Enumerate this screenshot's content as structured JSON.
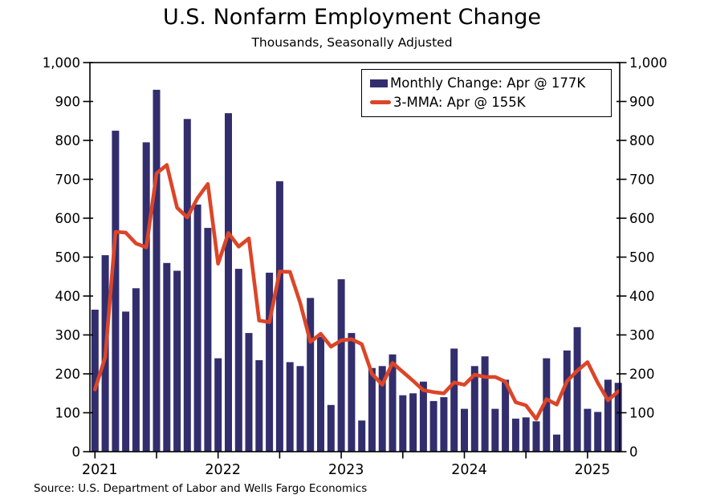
{
  "chart": {
    "title": "U.S. Nonfarm Employment Change",
    "subtitle": "Thousands, Seasonally Adjusted",
    "source": "Source: U.S. Department of Labor and Wells Fargo Economics",
    "legend": [
      {
        "label": "Monthly Change: Apr @ 177K",
        "marker": "bar-swatch",
        "color": "#322e6d"
      },
      {
        "label": "3-MMA: Apr @ 155K",
        "marker": "line-swatch",
        "color": "#dc4528"
      }
    ]
  },
  "chart_data": {
    "type": "bar",
    "title": "U.S. Nonfarm Employment Change",
    "subtitle": "Thousands, Seasonally Adjusted",
    "xlabel": "",
    "ylabel": "Thousands, Seasonally Adjusted",
    "ylim": [
      0,
      1000
    ],
    "ytick_step": 100,
    "ytick_labels": [
      "0",
      "100",
      "200",
      "300",
      "400",
      "500",
      "600",
      "700",
      "800",
      "900",
      "1,000"
    ],
    "y_axis_sides": [
      "left",
      "right"
    ],
    "grid": false,
    "legend_position": "top-right",
    "x_year_labels": [
      "2021",
      "2022",
      "2023",
      "2024",
      "2025"
    ],
    "xtick_interval_months": 6,
    "categories": [
      "2021-01",
      "2021-02",
      "2021-03",
      "2021-04",
      "2021-05",
      "2021-06",
      "2021-07",
      "2021-08",
      "2021-09",
      "2021-10",
      "2021-11",
      "2021-12",
      "2022-01",
      "2022-02",
      "2022-03",
      "2022-04",
      "2022-05",
      "2022-06",
      "2022-07",
      "2022-08",
      "2022-09",
      "2022-10",
      "2022-11",
      "2022-12",
      "2023-01",
      "2023-02",
      "2023-03",
      "2023-04",
      "2023-05",
      "2023-06",
      "2023-07",
      "2023-08",
      "2023-09",
      "2023-10",
      "2023-11",
      "2023-12",
      "2024-01",
      "2024-02",
      "2024-03",
      "2024-04",
      "2024-05",
      "2024-06",
      "2024-07",
      "2024-08",
      "2024-09",
      "2024-10",
      "2024-11",
      "2024-12",
      "2025-01",
      "2025-02",
      "2025-03",
      "2025-04"
    ],
    "series": [
      {
        "name": "Monthly Change: Apr @ 177K",
        "type": "bar",
        "color": "#322e6d",
        "values": [
          365,
          505,
          825,
          360,
          420,
          795,
          930,
          485,
          465,
          855,
          635,
          575,
          240,
          870,
          470,
          305,
          235,
          460,
          695,
          230,
          220,
          395,
          295,
          120,
          443,
          305,
          80,
          215,
          220,
          250,
          145,
          150,
          180,
          130,
          140,
          265,
          110,
          220,
          245,
          110,
          185,
          85,
          88,
          78,
          240,
          44,
          260,
          320,
          110,
          102,
          185,
          177
        ]
      },
      {
        "name": "3-MMA: Apr @ 155K",
        "type": "line",
        "color": "#dc4528",
        "values": [
          160,
          243,
          565,
          563,
          535,
          525,
          715,
          737,
          627,
          602,
          652,
          688,
          483,
          562,
          527,
          548,
          337,
          333,
          463,
          462,
          382,
          282,
          303,
          270,
          286,
          289,
          276,
          200,
          172,
          228,
          205,
          182,
          158,
          153,
          150,
          178,
          172,
          198,
          192,
          192,
          180,
          127,
          119,
          84,
          135,
          121,
          181,
          208,
          230,
          177,
          132,
          155
        ]
      }
    ]
  }
}
